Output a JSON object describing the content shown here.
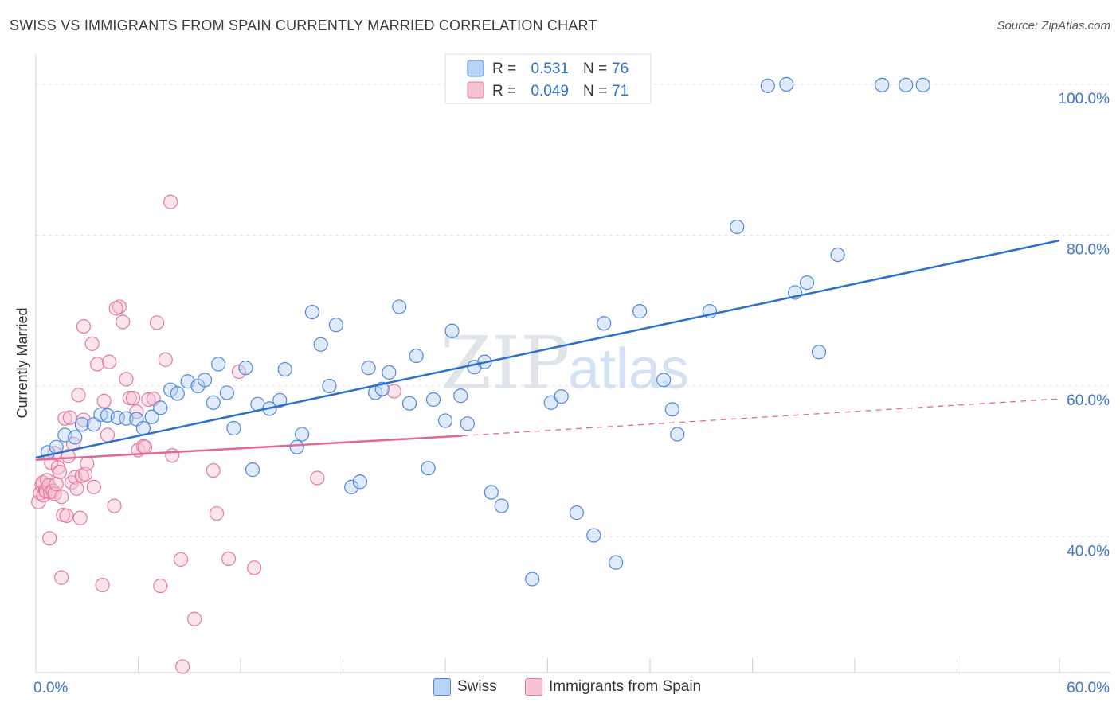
{
  "title": "SWISS VS IMMIGRANTS FROM SPAIN CURRENTLY MARRIED CORRELATION CHART",
  "source": "Source: ZipAtlas.com",
  "watermark": {
    "zip": "ZIP",
    "atlas": "atlas"
  },
  "colors": {
    "swiss_fill": "#b9d3f5",
    "swiss_stroke": "#4f86d8",
    "swiss_line": "#2b6fcf",
    "spain_fill": "#f7c3d3",
    "spain_stroke": "#e27aa0",
    "spain_line": "#e0679a",
    "tick_label": "#3f74c9",
    "grid": "#e2e2e2"
  },
  "legend": {
    "swiss": {
      "r_label": "R =",
      "r_value": "0.531",
      "n_label": "N =",
      "n_value": "76"
    },
    "spain": {
      "r_label": "R =",
      "r_value": "0.049",
      "n_label": "N =",
      "n_value": "71"
    }
  },
  "bottom_legend": {
    "swiss": "Swiss",
    "spain": "Immigrants from Spain"
  },
  "chart_data": {
    "type": "scatter",
    "title": "SWISS VS IMMIGRANTS FROM SPAIN CURRENTLY MARRIED CORRELATION CHART",
    "xlabel": "",
    "ylabel": "Currently Married",
    "xlim": [
      0,
      60
    ],
    "ylim": [
      22,
      104
    ],
    "x_tick_labels": [
      "0.0%",
      "60.0%"
    ],
    "y_ticks": [
      40,
      60,
      80,
      100
    ],
    "y_tick_labels": [
      "40.0%",
      "60.0%",
      "80.0%",
      "100.0%"
    ],
    "grid": true,
    "legend_position": "top-center",
    "series": [
      {
        "name": "Swiss",
        "r": 0.531,
        "n": 76,
        "trend": {
          "x": [
            0,
            60
          ],
          "y": [
            50.5,
            79.3
          ],
          "dashed_extension": false
        },
        "points": [
          [
            0.7,
            51.2
          ],
          [
            1.2,
            51.9
          ],
          [
            1.7,
            53.5
          ],
          [
            2.3,
            53.2
          ],
          [
            2.7,
            54.9
          ],
          [
            3.4,
            54.9
          ],
          [
            3.8,
            56.2
          ],
          [
            4.2,
            56.1
          ],
          [
            4.8,
            55.8
          ],
          [
            5.3,
            55.7
          ],
          [
            5.9,
            55.6
          ],
          [
            6.3,
            54.4
          ],
          [
            6.8,
            55.9
          ],
          [
            7.3,
            57.1
          ],
          [
            7.9,
            59.5
          ],
          [
            8.3,
            59.0
          ],
          [
            8.9,
            60.6
          ],
          [
            9.5,
            60.0
          ],
          [
            9.9,
            60.8
          ],
          [
            10.4,
            57.8
          ],
          [
            10.7,
            62.9
          ],
          [
            11.2,
            59.1
          ],
          [
            11.6,
            54.4
          ],
          [
            12.3,
            62.4
          ],
          [
            12.7,
            48.9
          ],
          [
            13.0,
            57.6
          ],
          [
            13.7,
            57.0
          ],
          [
            14.3,
            58.1
          ],
          [
            14.6,
            62.2
          ],
          [
            15.3,
            51.9
          ],
          [
            15.6,
            53.6
          ],
          [
            16.2,
            69.8
          ],
          [
            16.7,
            65.5
          ],
          [
            17.2,
            60.0
          ],
          [
            17.6,
            68.1
          ],
          [
            18.5,
            46.6
          ],
          [
            19.0,
            47.3
          ],
          [
            19.5,
            62.4
          ],
          [
            19.9,
            59.1
          ],
          [
            20.3,
            59.6
          ],
          [
            20.7,
            61.8
          ],
          [
            21.3,
            70.5
          ],
          [
            21.9,
            57.7
          ],
          [
            22.3,
            64.0
          ],
          [
            23.0,
            49.1
          ],
          [
            23.3,
            58.2
          ],
          [
            24.0,
            55.4
          ],
          [
            24.4,
            67.3
          ],
          [
            24.9,
            58.7
          ],
          [
            25.3,
            55.0
          ],
          [
            25.7,
            62.5
          ],
          [
            26.3,
            63.2
          ],
          [
            26.7,
            45.9
          ],
          [
            27.3,
            44.1
          ],
          [
            29.1,
            34.4
          ],
          [
            30.2,
            57.8
          ],
          [
            30.8,
            58.6
          ],
          [
            31.7,
            43.2
          ],
          [
            32.7,
            40.2
          ],
          [
            33.3,
            68.3
          ],
          [
            34.0,
            36.6
          ],
          [
            35.4,
            69.9
          ],
          [
            36.8,
            60.8
          ],
          [
            37.3,
            56.9
          ],
          [
            37.6,
            53.6
          ],
          [
            39.5,
            69.9
          ],
          [
            41.1,
            81.1
          ],
          [
            42.9,
            99.8
          ],
          [
            44.0,
            100.0
          ],
          [
            44.5,
            72.4
          ],
          [
            45.2,
            73.7
          ],
          [
            45.9,
            64.5
          ],
          [
            47.0,
            77.4
          ],
          [
            49.6,
            99.9
          ],
          [
            51.0,
            99.9
          ],
          [
            52.0,
            99.9
          ]
        ]
      },
      {
        "name": "Immigrants from Spain",
        "r": 0.049,
        "n": 71,
        "trend": {
          "x": [
            0,
            25
          ],
          "y": [
            50.2,
            53.4
          ],
          "dashed_extension_to": [
            60,
            58.3
          ]
        },
        "points": [
          [
            0.15,
            44.6
          ],
          [
            0.25,
            45.8
          ],
          [
            0.35,
            46.9
          ],
          [
            0.4,
            47.2
          ],
          [
            0.45,
            45.5
          ],
          [
            0.55,
            46.2
          ],
          [
            0.6,
            46.0
          ],
          [
            0.65,
            47.5
          ],
          [
            0.75,
            46.8
          ],
          [
            0.85,
            45.9
          ],
          [
            0.9,
            49.8
          ],
          [
            1.0,
            46.1
          ],
          [
            1.1,
            45.7
          ],
          [
            1.2,
            47.0
          ],
          [
            1.3,
            49.2
          ],
          [
            1.4,
            48.6
          ],
          [
            1.5,
            45.3
          ],
          [
            1.6,
            42.9
          ],
          [
            1.7,
            55.7
          ],
          [
            1.8,
            42.8
          ],
          [
            1.9,
            50.7
          ],
          [
            2.0,
            55.8
          ],
          [
            2.1,
            47.2
          ],
          [
            2.2,
            52.3
          ],
          [
            2.3,
            47.9
          ],
          [
            2.4,
            46.4
          ],
          [
            2.5,
            58.8
          ],
          [
            2.6,
            42.5
          ],
          [
            2.7,
            48.1
          ],
          [
            2.8,
            55.5
          ],
          [
            2.9,
            48.3
          ],
          [
            3.0,
            49.7
          ],
          [
            0.8,
            39.8
          ],
          [
            1.5,
            34.6
          ],
          [
            2.8,
            67.9
          ],
          [
            3.3,
            65.6
          ],
          [
            3.6,
            62.9
          ],
          [
            3.9,
            33.6
          ],
          [
            4.3,
            63.2
          ],
          [
            4.6,
            44.1
          ],
          [
            4.9,
            70.5
          ],
          [
            5.1,
            68.5
          ],
          [
            5.3,
            60.9
          ],
          [
            5.5,
            58.4
          ],
          [
            5.9,
            56.6
          ],
          [
            6.0,
            51.5
          ],
          [
            6.3,
            52.0
          ],
          [
            6.6,
            58.2
          ],
          [
            6.9,
            58.3
          ],
          [
            7.1,
            68.4
          ],
          [
            7.3,
            33.5
          ],
          [
            7.6,
            63.5
          ],
          [
            7.9,
            84.4
          ],
          [
            8.0,
            50.8
          ],
          [
            8.5,
            37.0
          ],
          [
            9.3,
            29.1
          ],
          [
            10.4,
            48.8
          ],
          [
            10.6,
            43.1
          ],
          [
            11.3,
            37.1
          ],
          [
            11.9,
            61.9
          ],
          [
            12.8,
            35.9
          ],
          [
            16.5,
            47.8
          ],
          [
            21.0,
            59.3
          ],
          [
            4.0,
            58.0
          ],
          [
            4.2,
            53.5
          ],
          [
            5.7,
            58.4
          ],
          [
            6.4,
            51.9
          ],
          [
            8.6,
            22.8
          ],
          [
            4.7,
            70.3
          ],
          [
            3.4,
            46.6
          ],
          [
            1.1,
            51.1
          ]
        ]
      }
    ]
  }
}
